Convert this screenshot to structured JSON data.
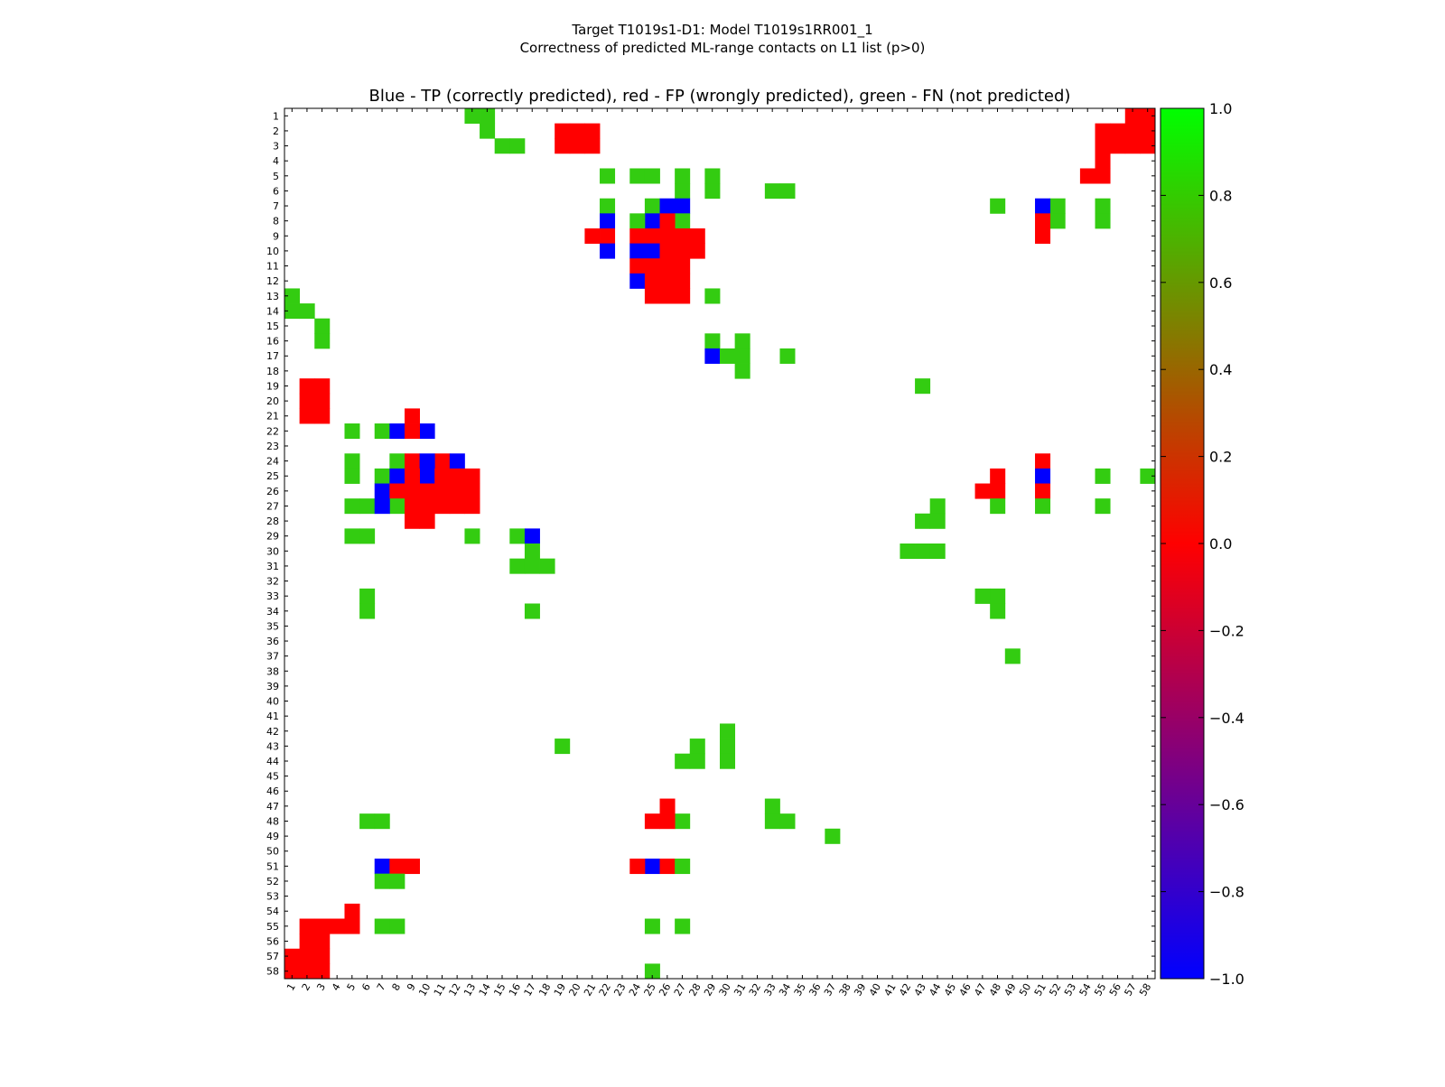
{
  "chart_data": {
    "type": "heatmap",
    "title": "Target T1019s1-D1: Model T1019s1RR001_1",
    "subtitle": "Correctness of predicted ML-range contacts on L1 list (p>0)",
    "axes_title": "Blue - TP (correctly predicted), red - FP (wrongly predicted), green - FN (not predicted)",
    "size": 58,
    "x_ticks": [
      1,
      2,
      3,
      4,
      5,
      6,
      7,
      8,
      9,
      10,
      11,
      12,
      13,
      14,
      15,
      16,
      17,
      18,
      19,
      20,
      21,
      22,
      23,
      24,
      25,
      26,
      27,
      28,
      29,
      30,
      31,
      32,
      33,
      34,
      35,
      36,
      37,
      38,
      39,
      40,
      41,
      42,
      43,
      44,
      45,
      46,
      47,
      48,
      49,
      50,
      51,
      52,
      53,
      54,
      55,
      56,
      57,
      58
    ],
    "y_ticks": [
      1,
      2,
      3,
      4,
      5,
      6,
      7,
      8,
      9,
      10,
      11,
      12,
      13,
      14,
      15,
      16,
      17,
      18,
      19,
      20,
      21,
      22,
      23,
      24,
      25,
      26,
      27,
      28,
      29,
      30,
      31,
      32,
      33,
      34,
      35,
      36,
      37,
      38,
      39,
      40,
      41,
      42,
      43,
      44,
      45,
      46,
      47,
      48,
      49,
      50,
      51,
      52,
      53,
      54,
      55,
      56,
      57,
      58
    ],
    "colors": {
      "tp": "#0000ff",
      "fp": "#ff0000",
      "fn": "#33cc11"
    },
    "colorbar": {
      "min": -1.0,
      "max": 1.0,
      "ticks": [
        "1.0",
        "0.8",
        "0.6",
        "0.4",
        "0.2",
        "0.0",
        "−0.2",
        "−0.4",
        "−0.6",
        "−0.8",
        "−1.0"
      ],
      "stops": [
        "#0000ff",
        "#ff0000",
        "#00ff00"
      ]
    },
    "cells": [
      {
        "row": 1,
        "cols": [
          13,
          14
        ],
        "v": "fn"
      },
      {
        "row": 1,
        "cols": [
          57,
          58
        ],
        "v": "fp"
      },
      {
        "row": 2,
        "cols": [
          14
        ],
        "v": "fn"
      },
      {
        "row": 2,
        "cols": [
          19,
          20,
          21
        ],
        "v": "fp"
      },
      {
        "row": 2,
        "cols": [
          55,
          56,
          57,
          58
        ],
        "v": "fp"
      },
      {
        "row": 3,
        "cols": [
          15,
          16
        ],
        "v": "fn"
      },
      {
        "row": 3,
        "cols": [
          19,
          20,
          21
        ],
        "v": "fp"
      },
      {
        "row": 3,
        "cols": [
          55,
          56,
          57,
          58
        ],
        "v": "fp"
      },
      {
        "row": 4,
        "cols": [
          55
        ],
        "v": "fp"
      },
      {
        "row": 5,
        "cols": [
          22,
          24,
          25,
          27,
          29
        ],
        "v": "fn"
      },
      {
        "row": 5,
        "cols": [
          54,
          55
        ],
        "v": "fp"
      },
      {
        "row": 6,
        "cols": [
          27,
          29,
          33,
          34
        ],
        "v": "fn"
      },
      {
        "row": 7,
        "cols": [
          22,
          25,
          48,
          52,
          55
        ],
        "v": "fn"
      },
      {
        "row": 7,
        "cols": [
          26,
          27,
          51
        ],
        "v": "tp"
      },
      {
        "row": 8,
        "cols": [
          22,
          25
        ],
        "v": "tp"
      },
      {
        "row": 8,
        "cols": [
          24,
          27,
          52,
          55
        ],
        "v": "fn"
      },
      {
        "row": 8,
        "cols": [
          26,
          51
        ],
        "v": "fp"
      },
      {
        "row": 9,
        "cols": [
          21,
          22,
          24,
          25,
          26,
          27,
          28,
          51
        ],
        "v": "fp"
      },
      {
        "row": 10,
        "cols": [
          22,
          24,
          25
        ],
        "v": "tp"
      },
      {
        "row": 10,
        "cols": [
          26,
          27,
          28
        ],
        "v": "fp"
      },
      {
        "row": 11,
        "cols": [
          24,
          25,
          26,
          27
        ],
        "v": "fp"
      },
      {
        "row": 12,
        "cols": [
          24
        ],
        "v": "tp"
      },
      {
        "row": 12,
        "cols": [
          25,
          26,
          27
        ],
        "v": "fp"
      },
      {
        "row": 13,
        "cols": [
          1,
          29
        ],
        "v": "fn"
      },
      {
        "row": 13,
        "cols": [
          25,
          26,
          27
        ],
        "v": "fp"
      },
      {
        "row": 14,
        "cols": [
          1,
          2
        ],
        "v": "fn"
      },
      {
        "row": 15,
        "cols": [
          3
        ],
        "v": "fn"
      },
      {
        "row": 16,
        "cols": [
          3,
          29,
          31
        ],
        "v": "fn"
      },
      {
        "row": 17,
        "cols": [
          29
        ],
        "v": "tp"
      },
      {
        "row": 17,
        "cols": [
          30,
          31,
          34
        ],
        "v": "fn"
      },
      {
        "row": 18,
        "cols": [
          31
        ],
        "v": "fn"
      },
      {
        "row": 19,
        "cols": [
          2,
          3
        ],
        "v": "fp"
      },
      {
        "row": 19,
        "cols": [
          43
        ],
        "v": "fn"
      },
      {
        "row": 20,
        "cols": [
          2,
          3
        ],
        "v": "fp"
      },
      {
        "row": 21,
        "cols": [
          2,
          3,
          9
        ],
        "v": "fp"
      },
      {
        "row": 22,
        "cols": [
          5,
          7
        ],
        "v": "fn"
      },
      {
        "row": 22,
        "cols": [
          8,
          10
        ],
        "v": "tp"
      },
      {
        "row": 22,
        "cols": [
          9
        ],
        "v": "fp"
      },
      {
        "row": 24,
        "cols": [
          5,
          8
        ],
        "v": "fn"
      },
      {
        "row": 24,
        "cols": [
          9,
          11,
          51
        ],
        "v": "fp"
      },
      {
        "row": 24,
        "cols": [
          10,
          12
        ],
        "v": "tp"
      },
      {
        "row": 25,
        "cols": [
          5,
          7,
          55,
          58
        ],
        "v": "fn"
      },
      {
        "row": 25,
        "cols": [
          8,
          10,
          51
        ],
        "v": "tp"
      },
      {
        "row": 25,
        "cols": [
          9,
          11,
          12,
          13,
          48
        ],
        "v": "fp"
      },
      {
        "row": 26,
        "cols": [
          7
        ],
        "v": "tp"
      },
      {
        "row": 26,
        "cols": [
          8,
          9,
          10,
          11,
          12,
          13,
          47,
          48,
          51
        ],
        "v": "fp"
      },
      {
        "row": 27,
        "cols": [
          5,
          6,
          8,
          44,
          48,
          51,
          55
        ],
        "v": "fn"
      },
      {
        "row": 27,
        "cols": [
          7
        ],
        "v": "tp"
      },
      {
        "row": 27,
        "cols": [
          9,
          10,
          11,
          12,
          13
        ],
        "v": "fp"
      },
      {
        "row": 28,
        "cols": [
          9,
          10
        ],
        "v": "fp"
      },
      {
        "row": 28,
        "cols": [
          43,
          44
        ],
        "v": "fn"
      },
      {
        "row": 29,
        "cols": [
          5,
          6,
          13,
          16
        ],
        "v": "fn"
      },
      {
        "row": 29,
        "cols": [
          17
        ],
        "v": "tp"
      },
      {
        "row": 30,
        "cols": [
          17,
          42,
          43,
          44
        ],
        "v": "fn"
      },
      {
        "row": 31,
        "cols": [
          16,
          17,
          18
        ],
        "v": "fn"
      },
      {
        "row": 33,
        "cols": [
          6,
          47,
          48
        ],
        "v": "fn"
      },
      {
        "row": 34,
        "cols": [
          6,
          17,
          48
        ],
        "v": "fn"
      },
      {
        "row": 37,
        "cols": [
          49
        ],
        "v": "fn"
      },
      {
        "row": 42,
        "cols": [
          30
        ],
        "v": "fn"
      },
      {
        "row": 43,
        "cols": [
          19,
          28,
          30
        ],
        "v": "fn"
      },
      {
        "row": 44,
        "cols": [
          27,
          28,
          30
        ],
        "v": "fn"
      },
      {
        "row": 47,
        "cols": [
          26
        ],
        "v": "fp"
      },
      {
        "row": 47,
        "cols": [
          33
        ],
        "v": "fn"
      },
      {
        "row": 48,
        "cols": [
          6,
          7,
          27,
          33,
          34
        ],
        "v": "fn"
      },
      {
        "row": 48,
        "cols": [
          25,
          26
        ],
        "v": "fp"
      },
      {
        "row": 49,
        "cols": [
          37
        ],
        "v": "fn"
      },
      {
        "row": 51,
        "cols": [
          7,
          25
        ],
        "v": "tp"
      },
      {
        "row": 51,
        "cols": [
          8,
          9,
          24,
          26
        ],
        "v": "fp"
      },
      {
        "row": 51,
        "cols": [
          27
        ],
        "v": "fn"
      },
      {
        "row": 52,
        "cols": [
          7,
          8
        ],
        "v": "fn"
      },
      {
        "row": 54,
        "cols": [
          5
        ],
        "v": "fp"
      },
      {
        "row": 55,
        "cols": [
          2,
          3,
          4,
          5
        ],
        "v": "fp"
      },
      {
        "row": 55,
        "cols": [
          7,
          8,
          25,
          27
        ],
        "v": "fn"
      },
      {
        "row": 56,
        "cols": [
          2,
          3
        ],
        "v": "fp"
      },
      {
        "row": 57,
        "cols": [
          1,
          2,
          3
        ],
        "v": "fp"
      },
      {
        "row": 58,
        "cols": [
          1,
          2,
          3
        ],
        "v": "fp"
      },
      {
        "row": 58,
        "cols": [
          25
        ],
        "v": "fn"
      }
    ]
  }
}
